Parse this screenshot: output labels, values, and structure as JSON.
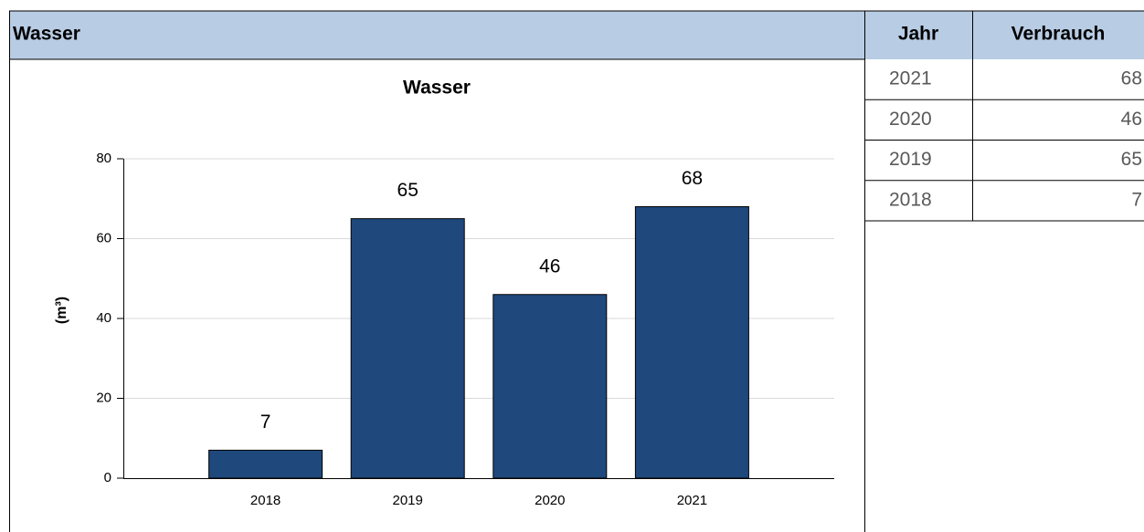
{
  "header": {
    "title": "Wasser"
  },
  "chart_data": {
    "type": "bar",
    "title": "Wasser",
    "y_label": "(m³)",
    "categories": [
      "2018",
      "2019",
      "2020",
      "2021"
    ],
    "values": [
      7,
      65,
      46,
      68
    ],
    "color": "#1f497d",
    "ylim": [
      0,
      80
    ],
    "yticks": [
      0,
      20,
      40,
      60,
      80
    ],
    "grid": true
  },
  "table": {
    "columns": [
      "Jahr",
      "Verbrauch"
    ],
    "rows": [
      [
        2021,
        68
      ],
      [
        2020,
        46
      ],
      [
        2019,
        65
      ],
      [
        2018,
        7
      ]
    ]
  }
}
